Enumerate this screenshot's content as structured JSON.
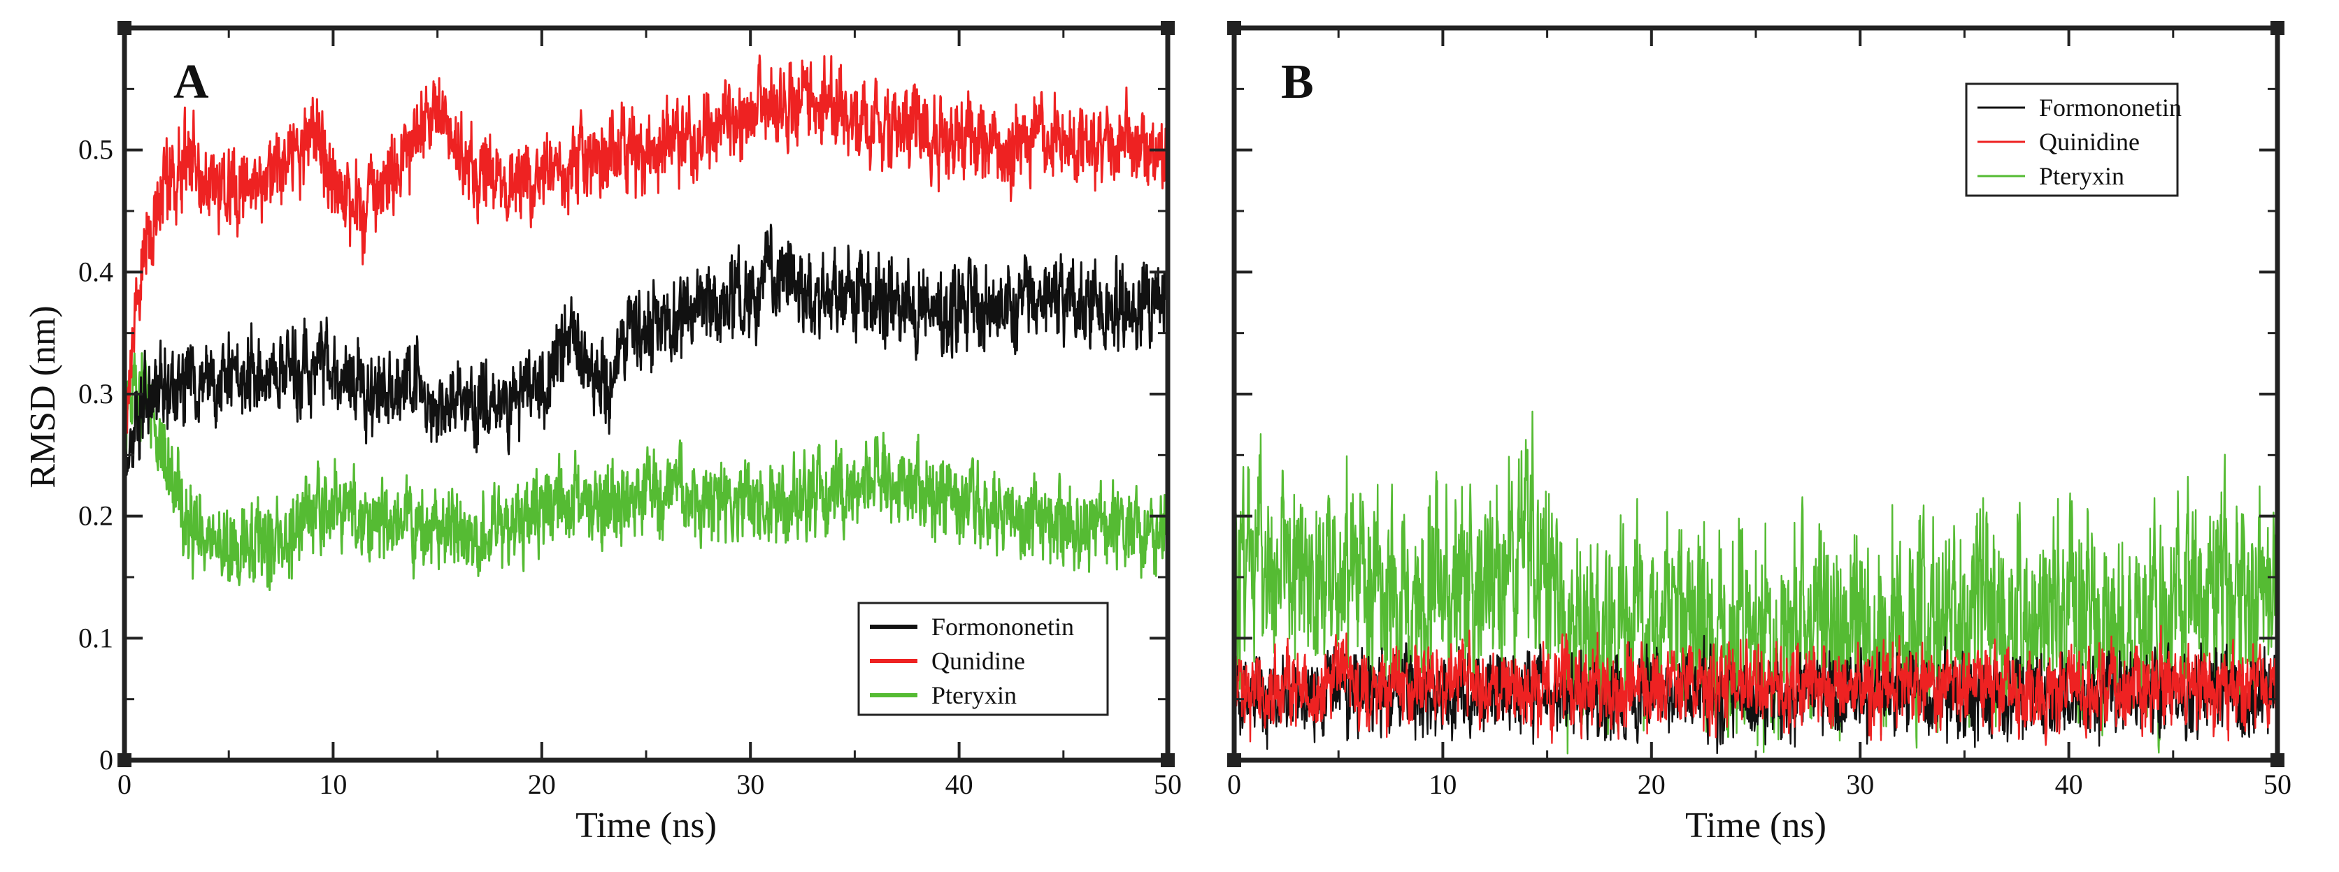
{
  "figure": {
    "ylabel": "RMSD (nm)",
    "colors": {
      "Formononetin": "#111111",
      "Quinidine": "#ee2222",
      "Pteryxin": "#55bb33",
      "frame": "#222222"
    }
  },
  "chart_data": [
    {
      "type": "line",
      "panel_label": "A",
      "xlabel": "Time (ns)",
      "ylabel": "RMSD (nm)",
      "xlim": [
        0,
        50
      ],
      "ylim": [
        0,
        0.6
      ],
      "x_ticks": [
        0,
        10,
        20,
        30,
        40,
        50
      ],
      "y_ticks": [
        0,
        0.1,
        0.2,
        0.3,
        0.4,
        0.5
      ],
      "x_tick_labels": [
        "0",
        "10",
        "20",
        "30",
        "40",
        "50"
      ],
      "y_tick_labels": [
        "0",
        "0.1",
        "0.2",
        "0.3",
        "0.4",
        "0.5"
      ],
      "legend_position": "bottom-right",
      "noise": 0.025,
      "series": [
        {
          "name": "Formononetin",
          "label": "Formononetin",
          "color": "#111111",
          "x": [
            0,
            1,
            2,
            4,
            6,
            8,
            10,
            12,
            14,
            16,
            18,
            20,
            21,
            22,
            23,
            24,
            26,
            28,
            30,
            31,
            32,
            34,
            36,
            38,
            40,
            42,
            44,
            46,
            48,
            50
          ],
          "y": [
            0.25,
            0.3,
            0.31,
            0.31,
            0.32,
            0.32,
            0.32,
            0.3,
            0.31,
            0.29,
            0.29,
            0.31,
            0.35,
            0.33,
            0.31,
            0.35,
            0.36,
            0.37,
            0.38,
            0.4,
            0.39,
            0.38,
            0.38,
            0.37,
            0.37,
            0.37,
            0.38,
            0.38,
            0.37,
            0.39
          ]
        },
        {
          "name": "Quinidine",
          "label": "Qunidine",
          "color": "#ee2222",
          "x": [
            0,
            0.5,
            1,
            2,
            3,
            4,
            6,
            8,
            9,
            10,
            11,
            12,
            13,
            14,
            15,
            16,
            17,
            18,
            20,
            22,
            24,
            26,
            28,
            30,
            31,
            32,
            34,
            36,
            38,
            40,
            42,
            44,
            46,
            48,
            50
          ],
          "y": [
            0.25,
            0.36,
            0.42,
            0.47,
            0.49,
            0.47,
            0.47,
            0.49,
            0.52,
            0.48,
            0.45,
            0.46,
            0.49,
            0.52,
            0.53,
            0.5,
            0.48,
            0.47,
            0.48,
            0.49,
            0.5,
            0.5,
            0.51,
            0.53,
            0.54,
            0.54,
            0.53,
            0.52,
            0.52,
            0.51,
            0.5,
            0.51,
            0.51,
            0.5,
            0.5
          ]
        },
        {
          "name": "Pteryxin",
          "label": "Pteryxin",
          "color": "#55bb33",
          "x": [
            0,
            0.5,
            1,
            2,
            3,
            4,
            5,
            6,
            7,
            8,
            9,
            10,
            12,
            14,
            16,
            18,
            20,
            21,
            22,
            24,
            26,
            28,
            30,
            32,
            34,
            36,
            38,
            40,
            42,
            44,
            46,
            48,
            50
          ],
          "y": [
            0.27,
            0.3,
            0.3,
            0.24,
            0.2,
            0.17,
            0.17,
            0.17,
            0.18,
            0.18,
            0.2,
            0.21,
            0.2,
            0.19,
            0.19,
            0.19,
            0.2,
            0.21,
            0.21,
            0.21,
            0.22,
            0.21,
            0.21,
            0.21,
            0.22,
            0.23,
            0.22,
            0.21,
            0.2,
            0.19,
            0.19,
            0.19,
            0.19
          ]
        }
      ]
    },
    {
      "type": "line",
      "panel_label": "B",
      "xlabel": "Time (ns)",
      "ylabel": "",
      "xlim": [
        0,
        50
      ],
      "ylim": [
        0,
        0.6
      ],
      "x_ticks": [
        0,
        10,
        20,
        30,
        40,
        50
      ],
      "y_ticks": [],
      "x_tick_labels": [
        "0",
        "10",
        "20",
        "30",
        "40",
        "50"
      ],
      "y_tick_labels": [],
      "legend_position": "top-right",
      "series": [
        {
          "name": "Formononetin",
          "label": "Formononetin",
          "color": "#111111",
          "x": [
            0,
            10,
            20,
            30,
            40,
            50
          ],
          "y": [
            0.055,
            0.055,
            0.055,
            0.055,
            0.055,
            0.055
          ],
          "noise": 0.025
        },
        {
          "name": "Quinidine",
          "label": "Quinidine",
          "color": "#ee2222",
          "x": [
            0,
            10,
            20,
            30,
            40,
            50
          ],
          "y": [
            0.06,
            0.06,
            0.06,
            0.06,
            0.06,
            0.06
          ],
          "noise": 0.025
        },
        {
          "name": "Pteryxin",
          "label": "Pteryxin",
          "color": "#55bb33",
          "x": [
            0,
            2,
            4,
            6,
            8,
            10,
            12,
            14,
            16,
            18,
            20,
            22,
            24,
            26,
            28,
            30,
            32,
            34,
            36,
            38,
            40,
            42,
            44,
            46,
            48,
            50
          ],
          "y": [
            0.17,
            0.16,
            0.15,
            0.15,
            0.12,
            0.17,
            0.13,
            0.18,
            0.11,
            0.1,
            0.12,
            0.12,
            0.11,
            0.1,
            0.12,
            0.11,
            0.11,
            0.12,
            0.12,
            0.11,
            0.13,
            0.1,
            0.11,
            0.15,
            0.13,
            0.13
          ],
          "noise": 0.06
        }
      ]
    }
  ]
}
